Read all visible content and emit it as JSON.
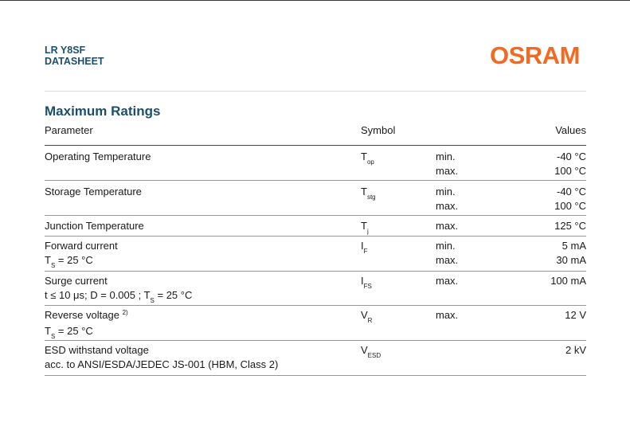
{
  "header": {
    "product": "LR Y8SF",
    "doc_type": "DATASHEET",
    "brand": "OSRAM",
    "brand_color": "#f26a21",
    "title_color": "#1f4e6b"
  },
  "section": {
    "title": "Maximum Ratings",
    "columns": {
      "parameter": "Parameter",
      "symbol": "Symbol",
      "values": "Values"
    }
  },
  "rows": [
    {
      "param": "Operating Temperature",
      "sym": "T",
      "sym_sub": "op",
      "limits": [
        "min.",
        "max."
      ],
      "values": [
        "-40 °C",
        "100 °C"
      ]
    },
    {
      "param": "Storage Temperature",
      "sym": "T",
      "sym_sub": "stg",
      "limits": [
        "min.",
        "max."
      ],
      "values": [
        "-40 °C",
        "100 °C"
      ]
    },
    {
      "param": "Junction Temperature",
      "sym": "T",
      "sym_sub": "j",
      "limits": [
        "max."
      ],
      "values": [
        "125 °C"
      ]
    },
    {
      "param": "Forward current",
      "cond_pre": "T",
      "cond_sub": "S",
      "cond_post": " = 25 °C",
      "sym": "I",
      "sym_sub": "F",
      "limits": [
        "min.",
        "max."
      ],
      "values": [
        "5 mA",
        "30 mA"
      ]
    },
    {
      "param": "Surge current",
      "cond_pre": "t ≤ 10 μs; D = 0.005 ; T",
      "cond_sub": "S",
      "cond_post": " = 25 °C",
      "sym": "I",
      "sym_sub": "FS",
      "limits": [
        "max."
      ],
      "values": [
        "100 mA"
      ]
    },
    {
      "param": "Reverse voltage",
      "param_sup": "2)",
      "cond_pre": "T",
      "cond_sub": "S",
      "cond_post": " = 25 °C",
      "sym": "V",
      "sym_sub": "R",
      "limits": [
        "max."
      ],
      "values": [
        "12 V"
      ]
    },
    {
      "param": "ESD withstand voltage",
      "cond_pre": "acc. to ANSI/ESDA/JEDEC JS-001 (HBM, Class 2)",
      "sym": "V",
      "sym_sub": "ESD",
      "limits": [],
      "values": [
        "2 kV"
      ]
    }
  ]
}
